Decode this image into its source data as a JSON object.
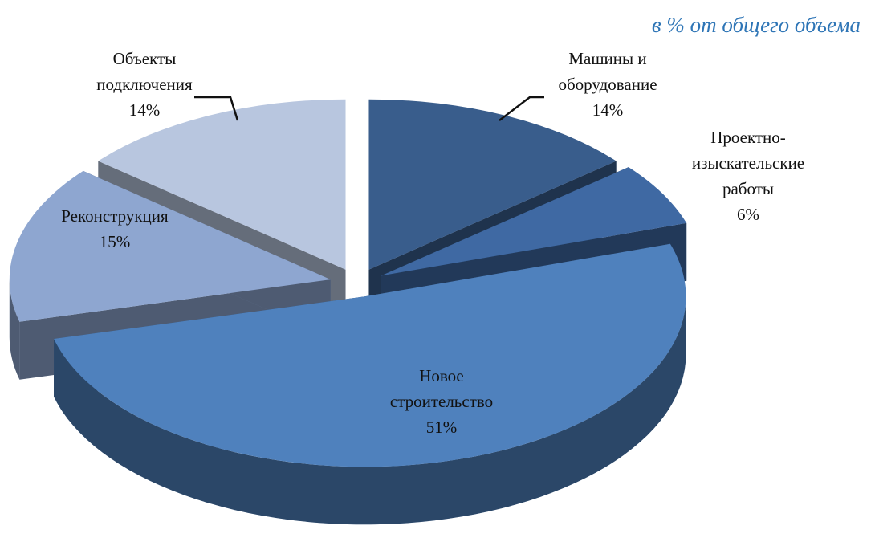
{
  "chart_data": {
    "type": "pie",
    "subtitle": "в % от общего объема",
    "categories": [
      "Машины и\nоборудование",
      "Проектно-\nизыскательские\nработы",
      "Новое\nстроительство",
      "Реконструкция",
      "Объекты\nподключения"
    ],
    "values": [
      14,
      6,
      51,
      15,
      14
    ],
    "value_labels": [
      "14%",
      "6%",
      "51%",
      "15%",
      "14%"
    ],
    "colors": [
      "#395d8c",
      "#3f69a3",
      "#4f81bd",
      "#8ea6d0",
      "#b8c6df"
    ]
  }
}
